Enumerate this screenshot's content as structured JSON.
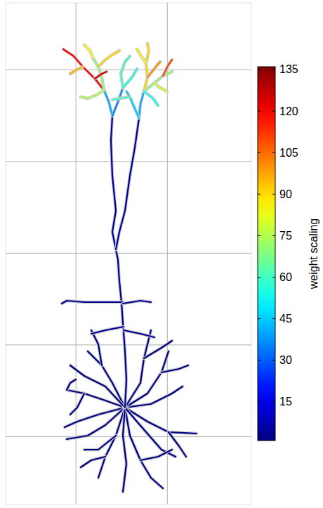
{
  "chart_data": {
    "type": "morphology",
    "xlim": [
      -0.77,
      1.92
    ],
    "xticks": [
      0,
      1
    ],
    "ylim": [
      -0.74,
      4.73
    ],
    "yticks": [
      0,
      1,
      2,
      3,
      4
    ],
    "grid": true,
    "tick_labels": false,
    "colorbar": {
      "label": "weight scaling",
      "range": [
        1,
        136
      ],
      "ticks": [
        15,
        30,
        45,
        60,
        75,
        90,
        105,
        120,
        135
      ]
    },
    "basal_weight": 2,
    "trunk_weight": 4,
    "tuft_weights": [
      40,
      120,
      70,
      85,
      90,
      35,
      60,
      55,
      75,
      95,
      40,
      90,
      70,
      80,
      100,
      85,
      45,
      60,
      110,
      55,
      125
    ]
  }
}
